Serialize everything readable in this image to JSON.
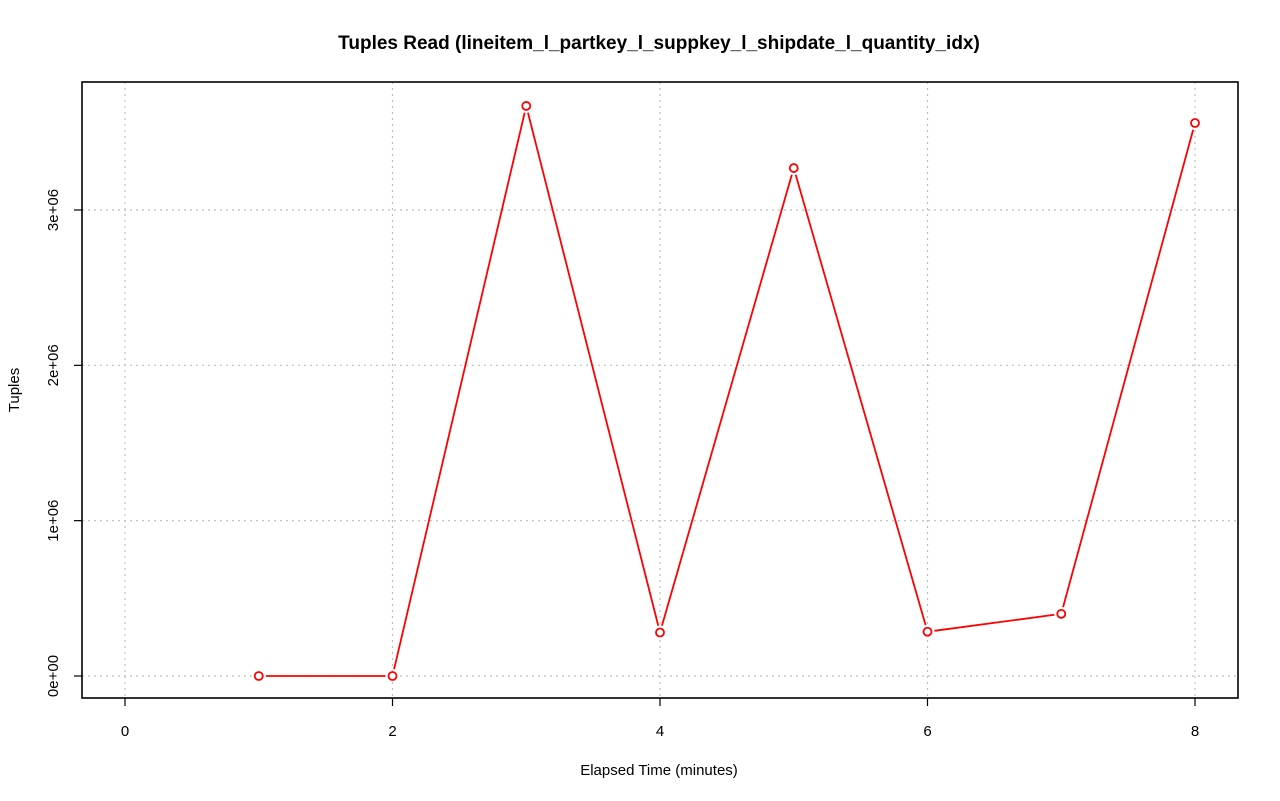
{
  "chart_data": {
    "type": "line",
    "title": "Tuples Read (lineitem_l_partkey_l_suppkey_l_shipdate_l_quantity_idx)",
    "xlabel": "Elapsed Time (minutes)",
    "ylabel": "Tuples",
    "x_ticks": [
      0,
      2,
      4,
      6,
      8
    ],
    "x_tick_labels": [
      "0",
      "2",
      "4",
      "6",
      "8"
    ],
    "y_ticks": [
      0,
      1000000,
      2000000,
      3000000
    ],
    "y_tick_labels": [
      "0e+00",
      "1e+06",
      "2e+06",
      "3e+06"
    ],
    "xlim": [
      0,
      8
    ],
    "ylim": [
      0,
      3700000
    ],
    "grid": true,
    "series": [
      {
        "color": "#ff0000",
        "x": [
          1,
          2,
          3,
          4,
          5,
          6,
          7,
          8
        ],
        "y": [
          0,
          0,
          3670000,
          280000,
          3270000,
          285000,
          400000,
          3560000
        ]
      }
    ]
  }
}
